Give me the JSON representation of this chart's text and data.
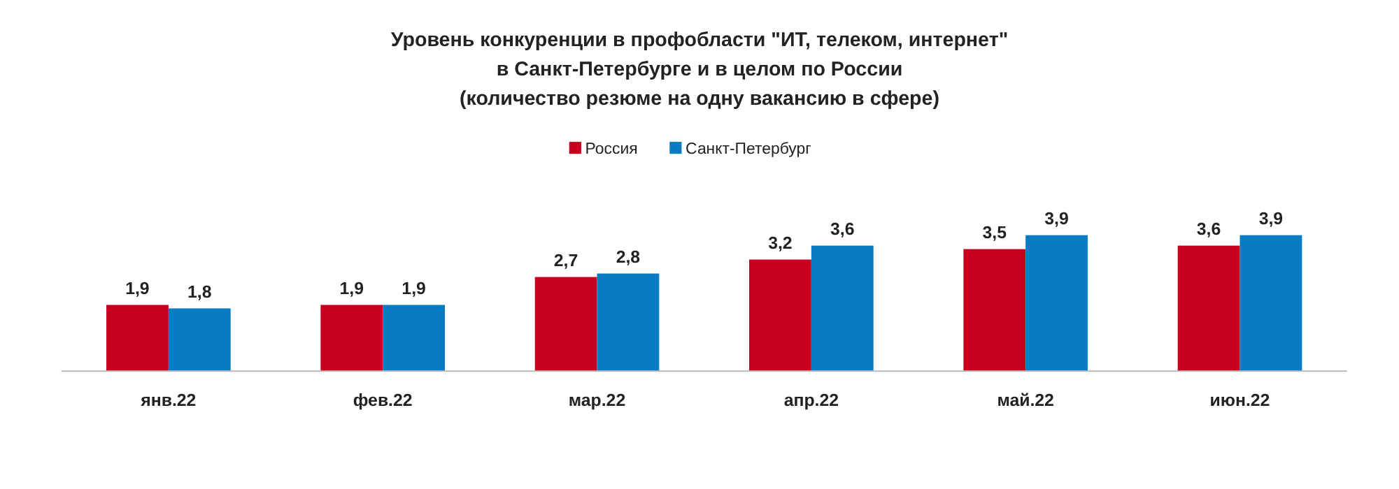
{
  "chart_data": {
    "type": "bar",
    "title": "Уровень конкуренции в профобласти \"ИТ, телеком, интернет\"\nв Санкт-Петербурге и в целом по России\n(количество резюме на одну вакансию в сфере)",
    "categories": [
      "янв.22",
      "фев.22",
      "мар.22",
      "апр.22",
      "май.22",
      "июн.22"
    ],
    "series": [
      {
        "name": "Россия",
        "color": "#c8001e",
        "values": [
          1.9,
          1.9,
          2.7,
          3.2,
          3.5,
          3.6
        ],
        "value_labels": [
          "1,9",
          "1,9",
          "2,7",
          "3,2",
          "3,5",
          "3,6"
        ]
      },
      {
        "name": "Санкт-Петербург",
        "color": "#0a7cc4",
        "values": [
          1.8,
          1.9,
          2.8,
          3.6,
          3.9,
          3.9
        ],
        "value_labels": [
          "1,8",
          "1,9",
          "2,8",
          "3,6",
          "3,9",
          "3,9"
        ]
      }
    ],
    "legend": "top"
  }
}
